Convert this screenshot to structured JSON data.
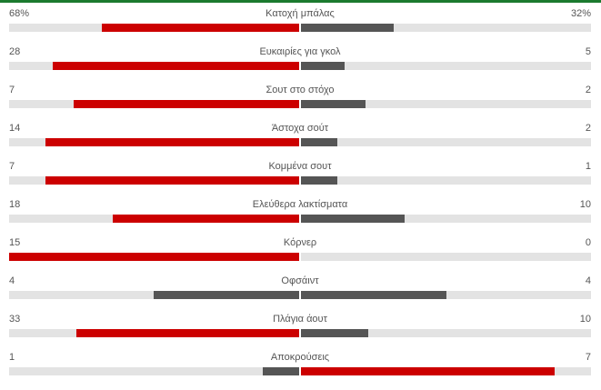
{
  "colors": {
    "accent": "#1b7a2f",
    "leading": "#cc0000",
    "trailing": "#555555",
    "track": "#e3e3e3"
  },
  "stats": [
    {
      "name": "Κατοχή μπάλας",
      "home": "68%",
      "away": "32%",
      "home_value": 68,
      "away_value": 32
    },
    {
      "name": "Ευκαιρίες για γκολ",
      "home": "28",
      "away": "5",
      "home_value": 28,
      "away_value": 5
    },
    {
      "name": "Σουτ στο στόχο",
      "home": "7",
      "away": "2",
      "home_value": 7,
      "away_value": 2
    },
    {
      "name": "Άστοχα σούτ",
      "home": "14",
      "away": "2",
      "home_value": 14,
      "away_value": 2
    },
    {
      "name": "Κομμένα σουτ",
      "home": "7",
      "away": "1",
      "home_value": 7,
      "away_value": 1
    },
    {
      "name": "Ελεύθερα λακτίσματα",
      "home": "18",
      "away": "10",
      "home_value": 18,
      "away_value": 10
    },
    {
      "name": "Κόρνερ",
      "home": "15",
      "away": "0",
      "home_value": 15,
      "away_value": 0
    },
    {
      "name": "Οφσάιντ",
      "home": "4",
      "away": "4",
      "home_value": 4,
      "away_value": 4
    },
    {
      "name": "Πλάγια άουτ",
      "home": "33",
      "away": "10",
      "home_value": 33,
      "away_value": 10
    },
    {
      "name": "Αποκρούσεις",
      "home": "1",
      "away": "7",
      "home_value": 1,
      "away_value": 7
    }
  ]
}
